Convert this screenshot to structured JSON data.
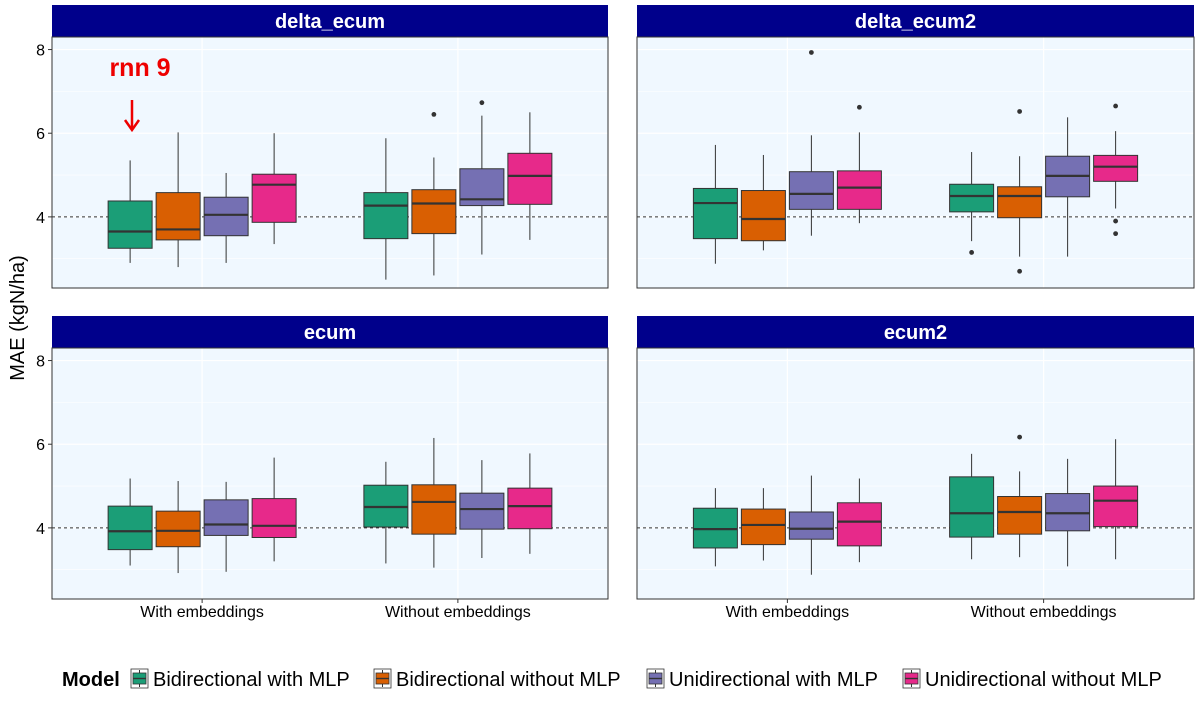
{
  "chart_data": {
    "type": "boxplot",
    "facets": [
      "delta_ecum",
      "delta_ecum2",
      "ecum",
      "ecum2"
    ],
    "categories": [
      "With embeddings",
      "Without embeddings"
    ],
    "series_names": [
      "Bidirectional with MLP",
      "Bidirectional without MLP",
      "Unidirectional with MLP",
      "Unidirectional without MLP"
    ],
    "colors": [
      "#1b9e77",
      "#d95f02",
      "#7570b3",
      "#e7298a"
    ],
    "ylabel": "MAE (kgN/ha)",
    "ylim": [
      2.3,
      8.3
    ],
    "yticks": [
      4,
      6,
      8
    ],
    "hline": 4,
    "legend": {
      "title": "Model",
      "position": "bottom"
    },
    "annotation": {
      "text": "rnn 9",
      "arrow": "↓",
      "facet": "delta_ecum",
      "category": "With embeddings",
      "series": "Bidirectional with MLP"
    },
    "boxes": {
      "delta_ecum": [
        [
          {
            "min": 2.9,
            "q1": 3.25,
            "median": 3.65,
            "q3": 4.38,
            "max": 5.35,
            "outliers": []
          },
          {
            "min": 2.8,
            "q1": 3.45,
            "median": 3.7,
            "q3": 4.58,
            "max": 6.02,
            "outliers": []
          },
          {
            "min": 2.9,
            "q1": 3.55,
            "median": 4.05,
            "q3": 4.47,
            "max": 5.05,
            "outliers": []
          },
          {
            "min": 3.35,
            "q1": 3.87,
            "median": 4.77,
            "q3": 5.02,
            "max": 6.0,
            "outliers": []
          }
        ],
        [
          {
            "min": 2.5,
            "q1": 3.48,
            "median": 4.27,
            "q3": 4.58,
            "max": 5.88,
            "outliers": []
          },
          {
            "min": 2.6,
            "q1": 3.6,
            "median": 4.32,
            "q3": 4.65,
            "max": 5.42,
            "outliers": [
              6.45
            ]
          },
          {
            "min": 3.1,
            "q1": 4.27,
            "median": 4.42,
            "q3": 5.15,
            "max": 6.42,
            "outliers": [
              6.73
            ]
          },
          {
            "min": 3.45,
            "q1": 4.3,
            "median": 4.98,
            "q3": 5.52,
            "max": 6.5,
            "outliers": []
          }
        ]
      ],
      "delta_ecum2": [
        [
          {
            "min": 2.88,
            "q1": 3.48,
            "median": 4.33,
            "q3": 4.68,
            "max": 5.72,
            "outliers": []
          },
          {
            "min": 3.2,
            "q1": 3.43,
            "median": 3.95,
            "q3": 4.63,
            "max": 5.48,
            "outliers": []
          },
          {
            "min": 3.55,
            "q1": 4.18,
            "median": 4.55,
            "q3": 5.08,
            "max": 5.95,
            "outliers": [
              7.93
            ]
          },
          {
            "min": 3.85,
            "q1": 4.18,
            "median": 4.7,
            "q3": 5.1,
            "max": 6.02,
            "outliers": [
              6.62
            ]
          }
        ],
        [
          {
            "min": 3.42,
            "q1": 4.12,
            "median": 4.5,
            "q3": 4.78,
            "max": 5.55,
            "outliers": [
              3.15
            ]
          },
          {
            "min": 3.05,
            "q1": 3.98,
            "median": 4.5,
            "q3": 4.72,
            "max": 5.45,
            "outliers": [
              6.52,
              2.7
            ]
          },
          {
            "min": 3.05,
            "q1": 4.48,
            "median": 4.98,
            "q3": 5.45,
            "max": 6.38,
            "outliers": []
          },
          {
            "min": 4.2,
            "q1": 4.85,
            "median": 5.2,
            "q3": 5.47,
            "max": 6.05,
            "outliers": [
              6.65,
              3.9,
              3.6
            ]
          }
        ]
      ],
      "ecum": [
        [
          {
            "min": 3.1,
            "q1": 3.48,
            "median": 3.92,
            "q3": 4.52,
            "max": 5.18,
            "outliers": []
          },
          {
            "min": 2.92,
            "q1": 3.55,
            "median": 3.93,
            "q3": 4.4,
            "max": 5.12,
            "outliers": []
          },
          {
            "min": 2.95,
            "q1": 3.82,
            "median": 4.08,
            "q3": 4.67,
            "max": 5.1,
            "outliers": []
          },
          {
            "min": 3.2,
            "q1": 3.77,
            "median": 4.05,
            "q3": 4.7,
            "max": 5.68,
            "outliers": []
          }
        ],
        [
          {
            "min": 3.15,
            "q1": 4.02,
            "median": 4.5,
            "q3": 5.02,
            "max": 5.58,
            "outliers": []
          },
          {
            "min": 3.05,
            "q1": 3.85,
            "median": 4.62,
            "q3": 5.03,
            "max": 6.15,
            "outliers": []
          },
          {
            "min": 3.28,
            "q1": 3.97,
            "median": 4.45,
            "q3": 4.83,
            "max": 5.62,
            "outliers": []
          },
          {
            "min": 3.38,
            "q1": 3.98,
            "median": 4.52,
            "q3": 4.95,
            "max": 5.78,
            "outliers": []
          }
        ]
      ],
      "ecum2": [
        [
          {
            "min": 3.08,
            "q1": 3.52,
            "median": 3.97,
            "q3": 4.47,
            "max": 4.95,
            "outliers": []
          },
          {
            "min": 3.22,
            "q1": 3.6,
            "median": 4.07,
            "q3": 4.45,
            "max": 4.95,
            "outliers": []
          },
          {
            "min": 2.88,
            "q1": 3.73,
            "median": 3.98,
            "q3": 4.38,
            "max": 5.25,
            "outliers": []
          },
          {
            "min": 3.18,
            "q1": 3.57,
            "median": 4.15,
            "q3": 4.6,
            "max": 5.18,
            "outliers": []
          }
        ],
        [
          {
            "min": 3.25,
            "q1": 3.78,
            "median": 4.35,
            "q3": 5.22,
            "max": 5.77,
            "outliers": []
          },
          {
            "min": 3.3,
            "q1": 3.85,
            "median": 4.38,
            "q3": 4.75,
            "max": 5.35,
            "outliers": [
              6.17
            ]
          },
          {
            "min": 3.08,
            "q1": 3.93,
            "median": 4.35,
            "q3": 4.82,
            "max": 5.65,
            "outliers": []
          },
          {
            "min": 3.25,
            "q1": 4.03,
            "median": 4.65,
            "q3": 5.0,
            "max": 6.12,
            "outliers": []
          }
        ]
      ]
    }
  }
}
